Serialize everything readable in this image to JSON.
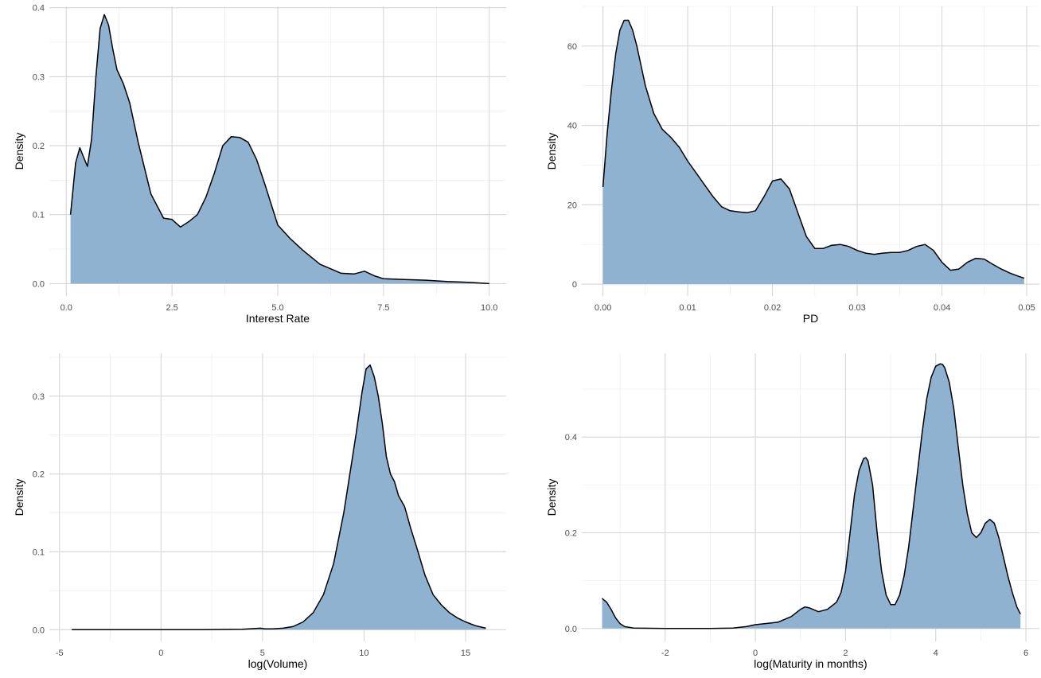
{
  "colors": {
    "fill": "#8fb2d1",
    "line": "#000000",
    "grid_major": "#d6d6d6",
    "grid_minor": "#ebebeb"
  },
  "chart_data": [
    {
      "type": "area",
      "title": "",
      "xlabel": "Interest Rate",
      "ylabel": "Density",
      "xlim": [
        -0.4,
        10.4
      ],
      "ylim": [
        -0.018,
        0.402
      ],
      "x_ticks": [
        0,
        2.5,
        5,
        7.5,
        10
      ],
      "x_tick_labels": [
        "0.0",
        "2.5",
        "5.0",
        "7.5",
        "10.0"
      ],
      "y_ticks": [
        0,
        0.1,
        0.2,
        0.3,
        0.4
      ],
      "y_tick_labels": [
        "0.0",
        "0.1",
        "0.2",
        "0.3",
        "0.4"
      ],
      "grid": true,
      "series": [
        {
          "x": [
            0.1,
            0.22,
            0.32,
            0.4,
            0.5,
            0.6,
            0.7,
            0.8,
            0.9,
            1.0,
            1.1,
            1.2,
            1.35,
            1.5,
            1.7,
            2.0,
            2.3,
            2.5,
            2.7,
            2.9,
            3.1,
            3.3,
            3.5,
            3.7,
            3.9,
            4.1,
            4.3,
            4.5,
            4.7,
            5.0,
            5.3,
            5.6,
            6.0,
            6.5,
            6.8,
            7.05,
            7.3,
            7.5,
            8.0,
            8.5,
            9.0,
            9.5,
            10.0
          ],
          "y": [
            0.1,
            0.175,
            0.197,
            0.185,
            0.17,
            0.21,
            0.3,
            0.37,
            0.39,
            0.375,
            0.34,
            0.31,
            0.29,
            0.262,
            0.205,
            0.13,
            0.095,
            0.093,
            0.082,
            0.09,
            0.1,
            0.125,
            0.16,
            0.2,
            0.213,
            0.212,
            0.205,
            0.18,
            0.143,
            0.085,
            0.065,
            0.048,
            0.028,
            0.015,
            0.014,
            0.018,
            0.011,
            0.007,
            0.006,
            0.005,
            0.003,
            0.002,
            0.0
          ]
        }
      ]
    },
    {
      "type": "area",
      "title": "",
      "xlabel": "PD",
      "ylabel": "Density",
      "xlim": [
        -0.0025,
        0.0515
      ],
      "ylim": [
        -3.0,
        70.0
      ],
      "x_ticks": [
        0,
        0.01,
        0.02,
        0.03,
        0.04,
        0.05
      ],
      "x_tick_labels": [
        "0.00",
        "0.01",
        "0.02",
        "0.03",
        "0.04",
        "0.05"
      ],
      "y_ticks": [
        0,
        20,
        40,
        60
      ],
      "y_tick_labels": [
        "0",
        "20",
        "40",
        "60"
      ],
      "grid": true,
      "series": [
        {
          "x": [
            0.0,
            0.0005,
            0.001,
            0.0015,
            0.002,
            0.0025,
            0.003,
            0.0035,
            0.004,
            0.005,
            0.006,
            0.007,
            0.008,
            0.009,
            0.01,
            0.011,
            0.012,
            0.013,
            0.014,
            0.015,
            0.016,
            0.017,
            0.018,
            0.019,
            0.02,
            0.021,
            0.022,
            0.023,
            0.024,
            0.025,
            0.026,
            0.027,
            0.028,
            0.029,
            0.03,
            0.031,
            0.032,
            0.033,
            0.034,
            0.035,
            0.036,
            0.037,
            0.038,
            0.039,
            0.04,
            0.041,
            0.042,
            0.043,
            0.044,
            0.045,
            0.046,
            0.047,
            0.048,
            0.049,
            0.0497
          ],
          "y": [
            24.5,
            38,
            49,
            58,
            64,
            66.5,
            66.5,
            64,
            60,
            50,
            43,
            39,
            37,
            34.5,
            31,
            28,
            25,
            22,
            19.5,
            18.5,
            18.2,
            18,
            18.5,
            22,
            26,
            26.5,
            24,
            18,
            12,
            9,
            9,
            9.8,
            10,
            9.5,
            8.5,
            7.8,
            7.5,
            7.8,
            8,
            8,
            8.5,
            9.5,
            10,
            8.5,
            5.5,
            3.5,
            3.8,
            5.5,
            6.5,
            6.3,
            5,
            3.8,
            2.8,
            2,
            1.5
          ]
        }
      ]
    },
    {
      "type": "area",
      "title": "",
      "xlabel": "log(Volume)",
      "ylabel": "Density",
      "xlim": [
        -5.5,
        17.0
      ],
      "ylim": [
        -0.015,
        0.355
      ],
      "x_ticks": [
        -5,
        0,
        5,
        10,
        15
      ],
      "x_tick_labels": [
        "-5",
        "0",
        "5",
        "10",
        "15"
      ],
      "y_ticks": [
        0,
        0.1,
        0.2,
        0.3
      ],
      "y_tick_labels": [
        "0.0",
        "0.1",
        "0.2",
        "0.3"
      ],
      "grid": true,
      "series": [
        {
          "x": [
            -4.4,
            -2,
            0,
            2,
            4,
            4.9,
            5.1,
            5.5,
            6,
            6.5,
            7,
            7.5,
            8,
            8.5,
            9,
            9.3,
            9.6,
            9.9,
            10.1,
            10.3,
            10.5,
            10.7,
            10.9,
            11.1,
            11.3,
            11.5,
            11.7,
            12,
            12.3,
            12.6,
            13,
            13.4,
            13.8,
            14.2,
            14.6,
            15,
            15.5,
            16
          ],
          "y": [
            0,
            0,
            0,
            0,
            0.0005,
            0.002,
            0.001,
            0.001,
            0.002,
            0.004,
            0.01,
            0.022,
            0.045,
            0.085,
            0.15,
            0.2,
            0.25,
            0.305,
            0.335,
            0.34,
            0.325,
            0.3,
            0.265,
            0.222,
            0.2,
            0.19,
            0.172,
            0.158,
            0.13,
            0.105,
            0.07,
            0.045,
            0.032,
            0.022,
            0.015,
            0.01,
            0.005,
            0.002
          ]
        }
      ]
    },
    {
      "type": "area",
      "title": "",
      "xlabel": "log(Maturity in months)",
      "ylabel": "Density",
      "xlim": [
        -3.85,
        6.3
      ],
      "ylim": [
        -0.027,
        0.575
      ],
      "x_ticks": [
        -2,
        0,
        2,
        4,
        6
      ],
      "x_tick_labels": [
        "-2",
        "0",
        "2",
        "4",
        "6"
      ],
      "y_ticks": [
        0,
        0.2,
        0.4
      ],
      "y_tick_labels": [
        "0.0",
        "0.2",
        "0.4"
      ],
      "grid": true,
      "series": [
        {
          "x": [
            -3.4,
            -3.3,
            -3.2,
            -3.1,
            -3.0,
            -2.9,
            -2.7,
            -2.0,
            -1.0,
            -0.5,
            -0.2,
            0.0,
            0.2,
            0.5,
            0.8,
            1.0,
            1.1,
            1.2,
            1.4,
            1.6,
            1.8,
            1.9,
            2.0,
            2.1,
            2.2,
            2.3,
            2.4,
            2.45,
            2.5,
            2.6,
            2.7,
            2.8,
            2.9,
            3.0,
            3.1,
            3.2,
            3.3,
            3.4,
            3.5,
            3.6,
            3.7,
            3.8,
            3.9,
            4.0,
            4.1,
            4.15,
            4.2,
            4.3,
            4.4,
            4.5,
            4.6,
            4.7,
            4.8,
            4.9,
            5.0,
            5.1,
            5.2,
            5.3,
            5.4,
            5.5,
            5.6,
            5.7,
            5.8,
            5.88
          ],
          "y": [
            0.063,
            0.055,
            0.04,
            0.022,
            0.01,
            0.004,
            0.001,
            0.0,
            0.0,
            0.001,
            0.004,
            0.008,
            0.01,
            0.013,
            0.025,
            0.04,
            0.045,
            0.043,
            0.035,
            0.04,
            0.055,
            0.075,
            0.12,
            0.2,
            0.28,
            0.33,
            0.355,
            0.357,
            0.35,
            0.3,
            0.2,
            0.12,
            0.07,
            0.05,
            0.05,
            0.07,
            0.11,
            0.17,
            0.25,
            0.33,
            0.41,
            0.48,
            0.525,
            0.548,
            0.553,
            0.552,
            0.545,
            0.515,
            0.46,
            0.38,
            0.3,
            0.24,
            0.2,
            0.19,
            0.2,
            0.22,
            0.228,
            0.22,
            0.19,
            0.15,
            0.11,
            0.075,
            0.045,
            0.03
          ]
        }
      ]
    }
  ]
}
